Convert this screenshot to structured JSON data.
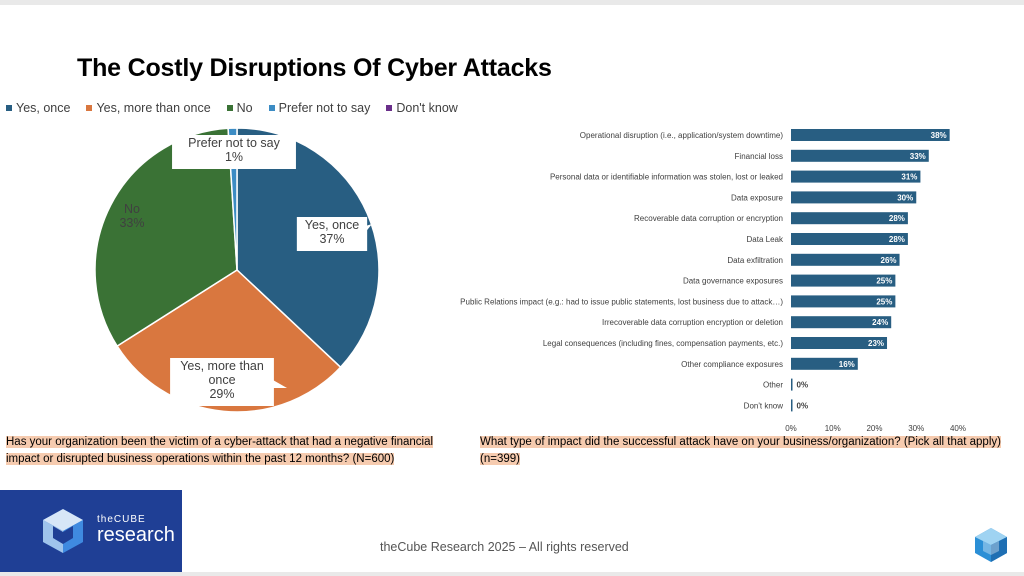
{
  "slide": {
    "title": "The Costly Disruptions Of Cyber Attacks",
    "footer": "theCube Research 2025 – All rights reserved",
    "logo_prefix": "theCUBE",
    "logo_name": "research"
  },
  "chart_data": [
    {
      "type": "pie",
      "legend_position": "top",
      "series": [
        {
          "name": "Yes, once",
          "value": 37,
          "color": "#285e82",
          "label": "Yes, once\n37%"
        },
        {
          "name": "Yes, more than once",
          "value": 29,
          "color": "#d9773f",
          "label": "Yes, more than\nonce\n29%"
        },
        {
          "name": "No",
          "value": 33,
          "color": "#3a7235",
          "label": "No\n33%"
        },
        {
          "name": "Prefer not to say",
          "value": 1,
          "color": "#3c8cc4",
          "label": "Prefer not to say\n1%"
        },
        {
          "name": "Don't know",
          "value": 0,
          "color": "#6a2f8a",
          "label": ""
        }
      ],
      "caption": "Has your organization been the victim of a cyber-attack that had a negative financial impact or disrupted business operations within the past 12 months? (N=600)"
    },
    {
      "type": "bar",
      "orientation": "horizontal",
      "categories": [
        "Operational disruption (i.e., application/system downtime)",
        "Financial loss",
        "Personal data or identifiable information was stolen, lost or leaked",
        "Data exposure",
        "Recoverable data corruption or encryption",
        "Data Leak",
        "Data exfiltration",
        "Data governance exposures",
        "Public Relations impact (e.g.: had to issue public statements, lost business due to attack…)",
        "Irrecoverable data corruption encryption or deletion",
        "Legal consequences (including fines, compensation payments, etc.)",
        "Other compliance exposures",
        "Other",
        "Don't know"
      ],
      "values": [
        38,
        33,
        31,
        30,
        28,
        28,
        26,
        25,
        25,
        24,
        23,
        16,
        0,
        0
      ],
      "value_labels": [
        "38%",
        "33%",
        "31%",
        "30%",
        "28%",
        "28%",
        "26%",
        "25%",
        "25%",
        "24%",
        "23%",
        "16%",
        "0%",
        "0%"
      ],
      "xlim": [
        0,
        40
      ],
      "xticks": [
        "0%",
        "10%",
        "20%",
        "30%",
        "40%"
      ],
      "bar_color": "#285e82",
      "grid": false,
      "caption": "What type of impact did the successful attack have on your business/organization? (Pick all that apply) (n=399)"
    }
  ]
}
